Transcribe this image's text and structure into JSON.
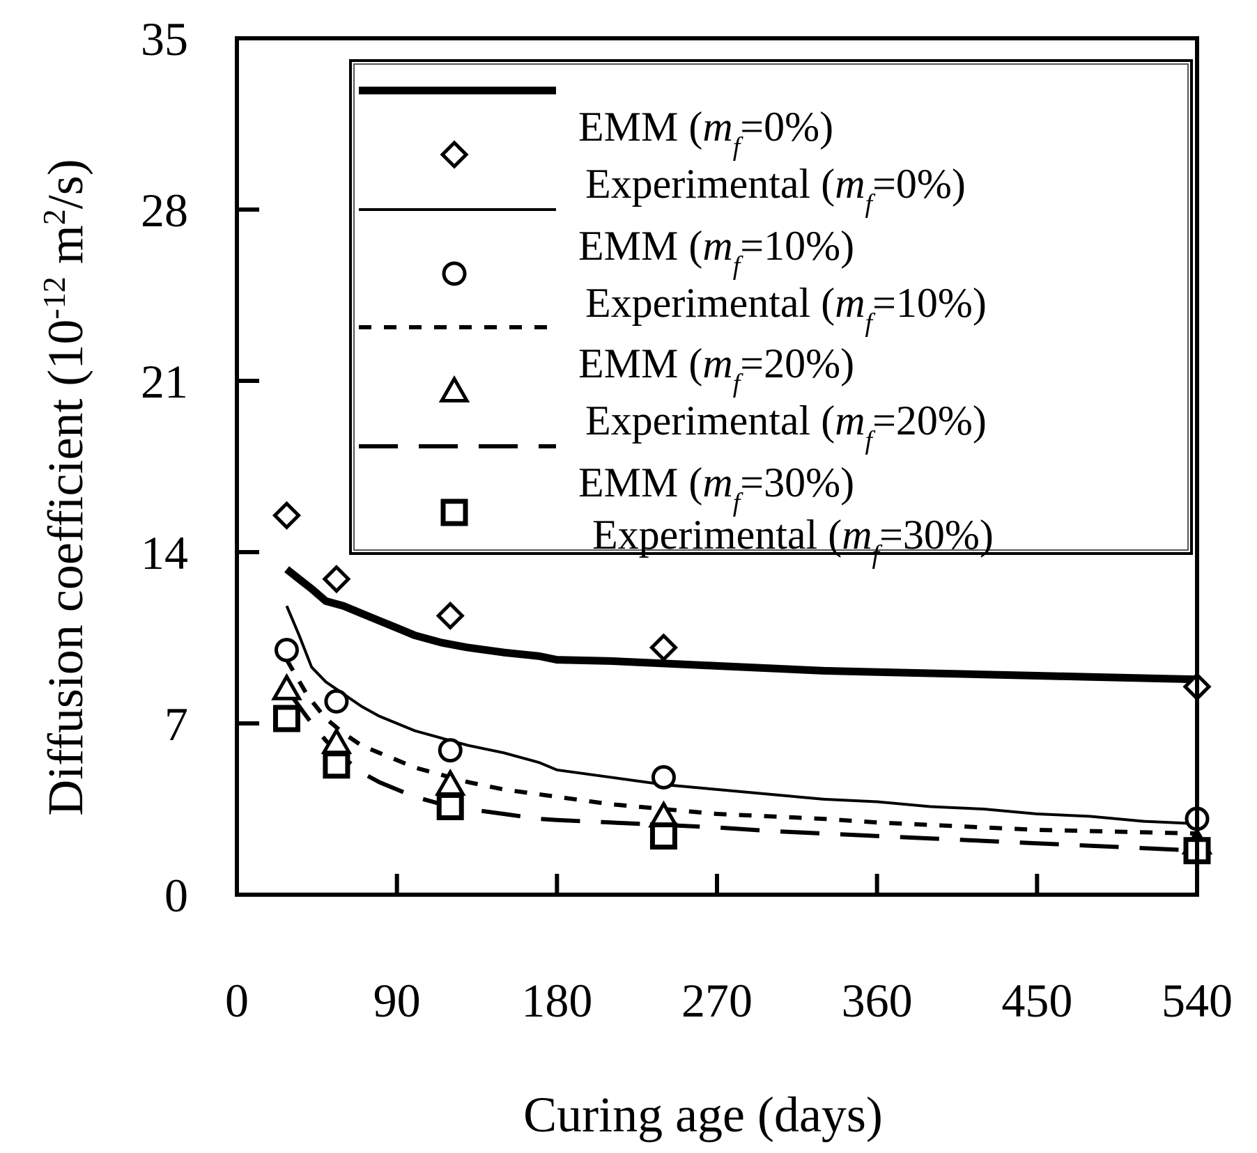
{
  "chart_data": {
    "type": "line",
    "xlabel": "Curing age (days)",
    "ylabel": "Diffusion coefficient (10",
    "ylabel_exp1": "-12",
    "ylabel_mid": " m",
    "ylabel_exp2": "2",
    "ylabel_end": "/s)",
    "xlim": [
      0,
      540
    ],
    "ylim": [
      0,
      35
    ],
    "xticks": [
      0,
      90,
      180,
      270,
      360,
      450,
      540
    ],
    "yticks": [
      0,
      7,
      14,
      21,
      28,
      35
    ],
    "grid": false,
    "legend_position": "top-right",
    "series": [
      {
        "kind": "model",
        "label_main": "EMM (",
        "label_var": "m",
        "label_sub": "f",
        "label_tail": "=0%)",
        "line_style": "thick-solid",
        "x": [
          28,
          35,
          42,
          50,
          60,
          70,
          80,
          90,
          100,
          115,
          130,
          150,
          170,
          180,
          210,
          240,
          270,
          300,
          330,
          360,
          390,
          420,
          450,
          480,
          510,
          540
        ],
        "y": [
          13.3,
          12.9,
          12.5,
          12.0,
          11.8,
          11.5,
          11.2,
          10.9,
          10.6,
          10.3,
          10.1,
          9.9,
          9.75,
          9.6,
          9.55,
          9.45,
          9.35,
          9.25,
          9.15,
          9.1,
          9.05,
          9.0,
          8.95,
          8.9,
          8.85,
          8.8
        ]
      },
      {
        "kind": "experimental",
        "label_main": "Experimental (",
        "label_var": "m",
        "label_sub": "f",
        "label_tail": "=0%)",
        "marker": "diamond",
        "x": [
          28,
          56,
          120,
          240,
          540
        ],
        "y": [
          15.5,
          12.9,
          11.4,
          10.1,
          8.5
        ]
      },
      {
        "kind": "model",
        "label_main": "EMM (",
        "label_var": "m",
        "label_sub": "f",
        "label_tail": "=10%)",
        "line_style": "thin-solid",
        "x": [
          28,
          35,
          42,
          50,
          60,
          70,
          80,
          90,
          100,
          115,
          130,
          150,
          170,
          180,
          210,
          240,
          270,
          300,
          330,
          360,
          390,
          420,
          450,
          480,
          510,
          540
        ],
        "y": [
          11.8,
          10.6,
          9.3,
          8.7,
          8.2,
          7.7,
          7.3,
          7.0,
          6.7,
          6.4,
          6.1,
          5.8,
          5.4,
          5.1,
          4.8,
          4.5,
          4.3,
          4.1,
          3.9,
          3.8,
          3.6,
          3.5,
          3.3,
          3.2,
          3.0,
          2.9
        ]
      },
      {
        "kind": "experimental",
        "label_main": "Experimental (",
        "label_var": "m",
        "label_sub": "f",
        "label_tail": "=10%)",
        "marker": "circle",
        "x": [
          28,
          56,
          120,
          240,
          540
        ],
        "y": [
          10.0,
          7.9,
          5.9,
          4.8,
          3.1
        ]
      },
      {
        "kind": "model",
        "label_main": "EMM (",
        "label_var": "m",
        "label_sub": "f",
        "label_tail": "=20%)",
        "line_style": "dotted",
        "x": [
          28,
          40,
          50,
          60,
          70,
          80,
          90,
          100,
          115,
          130,
          150,
          170,
          180,
          210,
          240,
          270,
          300,
          330,
          360,
          390,
          420,
          450,
          480,
          510,
          540
        ],
        "y": [
          9.6,
          8.1,
          7.2,
          6.6,
          6.1,
          5.8,
          5.5,
          5.2,
          4.9,
          4.6,
          4.3,
          4.1,
          4.0,
          3.7,
          3.5,
          3.3,
          3.2,
          3.1,
          2.95,
          2.85,
          2.75,
          2.65,
          2.6,
          2.55,
          2.5
        ]
      },
      {
        "kind": "experimental",
        "label_main": "Experimental (",
        "label_var": "m",
        "label_sub": "f",
        "label_tail": "=20%)",
        "marker": "triangle",
        "x": [
          28,
          56,
          120,
          240,
          540
        ],
        "y": [
          8.4,
          6.2,
          4.5,
          3.2,
          2.1
        ]
      },
      {
        "kind": "model",
        "label_main": "EMM (",
        "label_var": "m",
        "label_sub": "f",
        "label_tail": "=30%)",
        "line_style": "dashed",
        "x": [
          28,
          40,
          50,
          60,
          70,
          80,
          90,
          100,
          115,
          130,
          150,
          170,
          180,
          210,
          240,
          270,
          300,
          330,
          360,
          390,
          420,
          450,
          480,
          510,
          540
        ],
        "y": [
          8.4,
          7.2,
          6.3,
          5.6,
          5.0,
          4.6,
          4.3,
          4.0,
          3.7,
          3.5,
          3.3,
          3.1,
          3.05,
          2.95,
          2.85,
          2.75,
          2.6,
          2.5,
          2.4,
          2.3,
          2.2,
          2.1,
          2.0,
          1.9,
          1.8
        ]
      },
      {
        "kind": "experimental",
        "label_main": "Experimental (",
        "label_var": "m",
        "label_sub": "f",
        "label_tail": "=30%)",
        "marker": "square",
        "x": [
          28,
          56,
          120,
          240,
          540
        ],
        "y": [
          7.2,
          5.3,
          3.6,
          2.4,
          1.8
        ]
      }
    ]
  }
}
